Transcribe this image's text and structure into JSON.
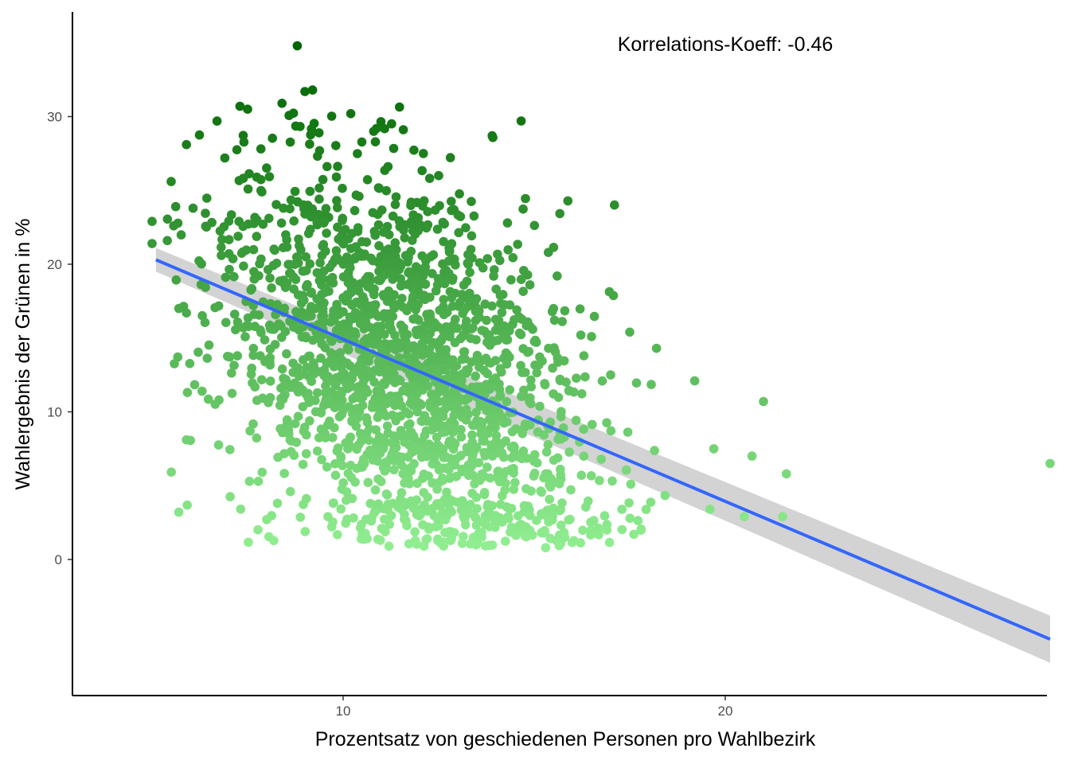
{
  "chart_data": {
    "type": "scatter",
    "xlabel": "Prozentsatz von geschiedenen Personen pro Wahlbezirk",
    "ylabel": "Wahlergebnis der Grünen in %",
    "annotation": "Korrelations-Koeff: -0.46",
    "xlim": [
      4.6,
      28.6
    ],
    "ylim": [
      -9.0,
      37.3
    ],
    "x_ticks": [
      10,
      20
    ],
    "y_ticks": [
      0,
      10,
      20,
      30
    ],
    "grid": false,
    "legend": "none",
    "point_color_scale": {
      "low": "#90EE90",
      "high": "#006400",
      "variable": "y"
    },
    "regression": {
      "x_start": 5.1,
      "y_start": 20.3,
      "x_end": 28.5,
      "y_end": -5.4,
      "ci_at_start": [
        19.5,
        21.1
      ],
      "ci_at_end": [
        -7.0,
        -3.8
      ],
      "line_color": "#3366FF",
      "band_color": "#D3D3D3"
    },
    "highlight_points": [
      {
        "x": 8.8,
        "y": 34.8
      },
      {
        "x": 9.2,
        "y": 31.8
      },
      {
        "x": 9.0,
        "y": 31.7
      },
      {
        "x": 8.4,
        "y": 30.9
      },
      {
        "x": 7.3,
        "y": 30.7
      },
      {
        "x": 7.5,
        "y": 30.5
      },
      {
        "x": 6.7,
        "y": 29.7
      },
      {
        "x": 13.9,
        "y": 28.7
      },
      {
        "x": 5.9,
        "y": 28.1
      },
      {
        "x": 5.0,
        "y": 22.9
      },
      {
        "x": 5.5,
        "y": 25.6
      },
      {
        "x": 5.0,
        "y": 21.4
      },
      {
        "x": 5.4,
        "y": 21.6
      },
      {
        "x": 5.9,
        "y": 16.7
      },
      {
        "x": 5.9,
        "y": 8.1
      },
      {
        "x": 5.7,
        "y": 3.2
      },
      {
        "x": 8.0,
        "y": 2.7
      },
      {
        "x": 11.2,
        "y": 0.9
      },
      {
        "x": 12.2,
        "y": 1.4
      },
      {
        "x": 15.3,
        "y": 0.8
      },
      {
        "x": 15.8,
        "y": 1.5
      },
      {
        "x": 21.0,
        "y": 10.7
      },
      {
        "x": 19.2,
        "y": 12.1
      },
      {
        "x": 18.2,
        "y": 14.3
      },
      {
        "x": 28.5,
        "y": 6.5
      },
      {
        "x": 21.6,
        "y": 5.8
      },
      {
        "x": 21.5,
        "y": 2.9
      },
      {
        "x": 20.5,
        "y": 2.9
      },
      {
        "x": 19.6,
        "y": 3.4
      },
      {
        "x": 19.7,
        "y": 7.5
      },
      {
        "x": 20.7,
        "y": 7.0
      },
      {
        "x": 16.5,
        "y": 15.1
      },
      {
        "x": 17.5,
        "y": 15.4
      },
      {
        "x": 14.3,
        "y": 22.8
      },
      {
        "x": 12.9,
        "y": 23.7
      },
      {
        "x": 12.5,
        "y": 26.0
      },
      {
        "x": 12.1,
        "y": 27.5
      },
      {
        "x": 10.8,
        "y": 29.0
      },
      {
        "x": 10.2,
        "y": 30.2
      },
      {
        "x": 17.0,
        "y": 12.5
      },
      {
        "x": 16.3,
        "y": 13.8
      },
      {
        "x": 15.6,
        "y": 19.2
      }
    ],
    "cloud_description_stats": {
      "n_points_approx": 2000,
      "x_center": 11.6,
      "x_spread": 2.8,
      "y_intercept_at_x10": 14.5,
      "slope": -1.1,
      "y_spread": 6.5
    }
  }
}
